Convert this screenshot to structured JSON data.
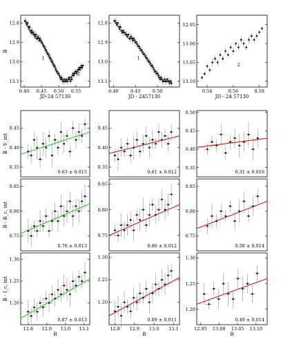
{
  "figure": {
    "colors": {
      "points": "#111111",
      "errorbars": "#777777",
      "fit_green": "#22cc22",
      "fit_red": "#dd1111",
      "frame": "#000000"
    }
  },
  "chart_data": [
    {
      "id": "lc1",
      "type": "scatter",
      "xlabel": "JD-24 57130",
      "ylabel": "B",
      "xlim": [
        0.39,
        0.59
      ],
      "ylim": [
        13.13,
        12.76
      ],
      "y_inverted": true,
      "xticks": [
        "0.40",
        "0.45",
        "0.50",
        "0.55"
      ],
      "xtick_values": [
        0.4,
        0.45,
        0.5,
        0.55
      ],
      "yticks": [
        "12.8",
        "12.9",
        "13.0",
        "13.1"
      ],
      "ytick_values": [
        12.8,
        12.9,
        13.0,
        13.1
      ],
      "annotations": [
        {
          "text": "1",
          "x": 0.455,
          "y": 12.99
        },
        {
          "text": "2",
          "x": 0.558,
          "y": 13.07
        }
      ],
      "points_x": [
        0.402,
        0.404,
        0.406,
        0.408,
        0.41,
        0.412,
        0.414,
        0.416,
        0.418,
        0.42,
        0.422,
        0.424,
        0.426,
        0.428,
        0.43,
        0.432,
        0.434,
        0.436,
        0.438,
        0.44,
        0.442,
        0.444,
        0.446,
        0.448,
        0.45,
        0.452,
        0.454,
        0.456,
        0.458,
        0.46,
        0.462,
        0.464,
        0.466,
        0.468,
        0.47,
        0.472,
        0.474,
        0.476,
        0.478,
        0.48,
        0.482,
        0.484,
        0.486,
        0.488,
        0.49,
        0.492,
        0.494,
        0.496,
        0.498,
        0.5,
        0.502,
        0.504,
        0.506,
        0.508,
        0.51,
        0.512,
        0.514,
        0.516,
        0.518,
        0.52,
        0.522,
        0.524,
        0.526,
        0.528,
        0.53,
        0.532,
        0.534,
        0.536,
        0.538,
        0.54,
        0.542,
        0.544,
        0.546,
        0.548,
        0.55,
        0.552,
        0.554,
        0.556,
        0.558,
        0.56,
        0.562,
        0.564,
        0.566,
        0.568,
        0.57
      ],
      "points_y": [
        12.79,
        12.79,
        12.8,
        12.81,
        12.8,
        12.82,
        12.83,
        12.82,
        12.84,
        12.85,
        12.84,
        12.85,
        12.85,
        12.86,
        12.86,
        12.87,
        12.86,
        12.88,
        12.88,
        12.87,
        12.88,
        12.89,
        12.88,
        12.89,
        12.9,
        12.9,
        12.91,
        12.92,
        12.92,
        12.93,
        12.94,
        12.94,
        12.95,
        12.96,
        12.96,
        12.97,
        12.98,
        12.98,
        12.99,
        13.0,
        13.0,
        13.01,
        13.02,
        13.02,
        13.03,
        13.04,
        13.05,
        13.05,
        13.06,
        13.06,
        13.07,
        13.08,
        13.09,
        13.08,
        13.09,
        13.1,
        13.1,
        13.09,
        13.1,
        13.1,
        13.09,
        13.1,
        13.1,
        13.09,
        13.08,
        13.09,
        13.1,
        13.08,
        13.09,
        13.07,
        13.06,
        13.07,
        13.06,
        13.05,
        13.05,
        13.06,
        13.05,
        13.04,
        13.04,
        13.03,
        13.04,
        13.03,
        13.02,
        13.03,
        13.02
      ]
    },
    {
      "id": "lc2",
      "type": "scatter",
      "xlabel": "JD - 2457130",
      "ylabel": "",
      "xlim": [
        0.39,
        0.55
      ],
      "ylim": [
        13.13,
        12.76
      ],
      "y_inverted": true,
      "xticks": [
        "0.40",
        "0.45",
        "0.50"
      ],
      "xtick_values": [
        0.4,
        0.45,
        0.5
      ],
      "yticks": [
        "12.8",
        "12.9",
        "13.0",
        "13.1"
      ],
      "ytick_values": [
        12.8,
        12.9,
        13.0,
        13.1
      ],
      "annotations": [
        {
          "text": "1",
          "x": 0.457,
          "y": 12.99
        }
      ],
      "points_x": [
        0.402,
        0.404,
        0.406,
        0.408,
        0.41,
        0.412,
        0.414,
        0.416,
        0.418,
        0.42,
        0.422,
        0.424,
        0.426,
        0.428,
        0.43,
        0.432,
        0.434,
        0.436,
        0.438,
        0.44,
        0.442,
        0.444,
        0.446,
        0.448,
        0.45,
        0.452,
        0.454,
        0.456,
        0.458,
        0.46,
        0.462,
        0.464,
        0.466,
        0.468,
        0.47,
        0.472,
        0.474,
        0.476,
        0.478,
        0.48,
        0.482,
        0.484,
        0.486,
        0.488,
        0.49,
        0.492,
        0.494,
        0.496,
        0.498,
        0.5,
        0.502,
        0.504,
        0.506,
        0.508,
        0.51,
        0.512,
        0.514,
        0.516,
        0.518,
        0.52,
        0.522,
        0.524,
        0.526,
        0.528,
        0.53,
        0.532
      ],
      "points_y": [
        12.79,
        12.79,
        12.8,
        12.81,
        12.8,
        12.82,
        12.83,
        12.82,
        12.84,
        12.85,
        12.84,
        12.85,
        12.85,
        12.86,
        12.86,
        12.87,
        12.86,
        12.88,
        12.88,
        12.87,
        12.88,
        12.89,
        12.88,
        12.89,
        12.9,
        12.9,
        12.91,
        12.92,
        12.92,
        12.93,
        12.94,
        12.94,
        12.95,
        12.96,
        12.96,
        12.97,
        12.98,
        12.98,
        12.99,
        13.0,
        13.0,
        13.01,
        13.02,
        13.02,
        13.03,
        13.04,
        13.05,
        13.05,
        13.06,
        13.06,
        13.07,
        13.08,
        13.09,
        13.08,
        13.09,
        13.1,
        13.1,
        13.09,
        13.1,
        13.1,
        13.09,
        13.1,
        13.1,
        13.11,
        13.1,
        13.11
      ]
    },
    {
      "id": "lc3",
      "type": "scatter",
      "xlabel": "JD - 24 57130",
      "ylabel": "",
      "xlim": [
        0.532,
        0.586
      ],
      "ylim": [
        13.115,
        12.925
      ],
      "y_inverted": true,
      "xticks": [
        "0.54",
        "0.56",
        "0.58"
      ],
      "xtick_values": [
        0.54,
        0.56,
        0.58
      ],
      "yticks": [
        "12.95",
        "13.00",
        "13.05",
        "13.10"
      ],
      "ytick_values": [
        12.95,
        13.0,
        13.05,
        13.1
      ],
      "annotations": [
        {
          "text": "2",
          "x": 0.564,
          "y": 13.06
        }
      ],
      "points_x": [
        0.536,
        0.538,
        0.54,
        0.542,
        0.544,
        0.546,
        0.548,
        0.55,
        0.552,
        0.554,
        0.556,
        0.558,
        0.56,
        0.562,
        0.564,
        0.566,
        0.568,
        0.57,
        0.572,
        0.574,
        0.576,
        0.578,
        0.58,
        0.582
      ],
      "points_y": [
        13.09,
        13.08,
        13.06,
        13.07,
        13.05,
        13.04,
        13.05,
        13.03,
        13.04,
        13.02,
        13.03,
        13.01,
        13.02,
        13.0,
        13.01,
        12.99,
        13.0,
        13.01,
        12.99,
        12.98,
        12.99,
        12.98,
        12.97,
        12.96
      ]
    },
    {
      "id": "c1",
      "type": "scatter",
      "ylabel": "B - V_int",
      "xlabel": "",
      "xlim": [
        12.76,
        13.13
      ],
      "ylim": [
        0.325,
        0.495
      ],
      "xticks": [],
      "xtick_values": [],
      "yticks": [
        "0.35",
        "0.40",
        "0.45"
      ],
      "ytick_values": [
        0.35,
        0.4,
        0.45
      ],
      "fit": {
        "color": "green",
        "x0": 12.76,
        "y0": 0.383,
        "x1": 13.13,
        "y1": 0.44
      },
      "label": "0.63 ± 0.015",
      "points_x": [
        12.8,
        12.816,
        12.832,
        12.848,
        12.864,
        12.88,
        12.896,
        12.912,
        12.928,
        12.944,
        12.96,
        12.976,
        12.992,
        13.008,
        13.024,
        13.04,
        13.056,
        13.072,
        13.088,
        13.104
      ],
      "points_y": [
        0.39,
        0.38,
        0.42,
        0.4,
        0.37,
        0.41,
        0.4,
        0.43,
        0.38,
        0.42,
        0.4,
        0.44,
        0.41,
        0.43,
        0.39,
        0.45,
        0.42,
        0.44,
        0.43,
        0.46
      ]
    },
    {
      "id": "c2",
      "type": "scatter",
      "ylabel": "",
      "xlabel": "",
      "xlim": [
        12.77,
        13.13
      ],
      "ylim": [
        0.325,
        0.495
      ],
      "xticks": [],
      "xtick_values": [],
      "yticks": [
        "0.35",
        "0.40",
        "0.45"
      ],
      "ytick_values": [
        0.35,
        0.4,
        0.45
      ],
      "fit": {
        "color": "red",
        "x0": 12.77,
        "y0": 0.385,
        "x1": 13.13,
        "y1": 0.43
      },
      "label": "0.61 ± 0.012",
      "points_x": [
        12.8,
        12.816,
        12.832,
        12.848,
        12.864,
        12.88,
        12.896,
        12.912,
        12.928,
        12.944,
        12.96,
        12.976,
        12.992,
        13.008,
        13.024,
        13.04,
        13.056,
        13.072,
        13.088
      ],
      "points_y": [
        0.38,
        0.37,
        0.4,
        0.39,
        0.41,
        0.38,
        0.4,
        0.42,
        0.39,
        0.41,
        0.43,
        0.4,
        0.42,
        0.41,
        0.44,
        0.42,
        0.43,
        0.41,
        0.44
      ]
    },
    {
      "id": "c3",
      "type": "scatter",
      "ylabel": "",
      "xlabel": "",
      "xlim": [
        12.93,
        13.13
      ],
      "ylim": [
        0.325,
        0.505
      ],
      "xticks": [],
      "xtick_values": [],
      "yticks": [
        "0.35",
        "0.40",
        "0.45",
        "0.50"
      ],
      "ytick_values": [
        0.35,
        0.4,
        0.45,
        0.5
      ],
      "fit": {
        "color": "red",
        "x0": 12.93,
        "y0": 0.405,
        "x1": 13.13,
        "y1": 0.43
      },
      "label": "0.31 ± 0.016",
      "points_x": [
        12.96,
        12.973,
        12.986,
        12.999,
        13.012,
        13.025,
        13.038,
        13.051,
        13.064,
        13.077,
        13.09,
        13.103
      ],
      "points_y": [
        0.4,
        0.42,
        0.41,
        0.44,
        0.39,
        0.42,
        0.43,
        0.41,
        0.42,
        0.44,
        0.4,
        0.43
      ]
    },
    {
      "id": "c4",
      "type": "scatter",
      "ylabel": "B - R_c, int",
      "xlabel": "",
      "xlim": [
        12.76,
        13.13
      ],
      "ylim": [
        0.72,
        0.865
      ],
      "xticks": [],
      "xtick_values": [],
      "yticks": [
        "0.75",
        "0.80",
        "0.85"
      ],
      "ytick_values": [
        0.75,
        0.8,
        0.85
      ],
      "fit": {
        "color": "green",
        "x0": 12.76,
        "y0": 0.755,
        "x1": 13.13,
        "y1": 0.815
      },
      "label": "0.76 ± 0.013",
      "points_x": [
        12.8,
        12.816,
        12.832,
        12.848,
        12.864,
        12.88,
        12.896,
        12.912,
        12.928,
        12.944,
        12.96,
        12.976,
        12.992,
        13.008,
        13.024,
        13.04,
        13.056,
        13.072,
        13.088,
        13.104
      ],
      "points_y": [
        0.76,
        0.75,
        0.77,
        0.76,
        0.78,
        0.77,
        0.79,
        0.76,
        0.78,
        0.8,
        0.78,
        0.81,
        0.79,
        0.8,
        0.82,
        0.79,
        0.81,
        0.8,
        0.82,
        0.83
      ]
    },
    {
      "id": "c5",
      "type": "scatter",
      "ylabel": "",
      "xlabel": "",
      "xlim": [
        12.77,
        13.13
      ],
      "ylim": [
        0.72,
        0.86
      ],
      "xticks": [],
      "xtick_values": [],
      "yticks": [
        "0.75",
        "0.80",
        "0.85"
      ],
      "ytick_values": [
        0.75,
        0.8,
        0.85
      ],
      "fit": {
        "color": "red",
        "x0": 12.77,
        "y0": 0.75,
        "x1": 13.13,
        "y1": 0.81
      },
      "label": "0.80 ± 0.012",
      "points_x": [
        12.8,
        12.816,
        12.832,
        12.848,
        12.864,
        12.88,
        12.896,
        12.912,
        12.928,
        12.944,
        12.96,
        12.976,
        12.992,
        13.008,
        13.024,
        13.04,
        13.056,
        13.072,
        13.088
      ],
      "points_y": [
        0.76,
        0.75,
        0.77,
        0.76,
        0.77,
        0.78,
        0.76,
        0.79,
        0.78,
        0.8,
        0.77,
        0.79,
        0.81,
        0.79,
        0.8,
        0.82,
        0.8,
        0.81,
        0.83
      ]
    },
    {
      "id": "c6",
      "type": "scatter",
      "ylabel": "",
      "xlabel": "",
      "xlim": [
        12.93,
        13.13
      ],
      "ylim": [
        0.72,
        0.865
      ],
      "xticks": [],
      "xtick_values": [],
      "yticks": [
        "0.75",
        "0.80",
        "0.85"
      ],
      "ytick_values": [
        0.75,
        0.8,
        0.85
      ],
      "fit": {
        "color": "red",
        "x0": 12.93,
        "y0": 0.765,
        "x1": 13.13,
        "y1": 0.82
      },
      "label": "0.58 ± 0.014",
      "points_x": [
        12.96,
        12.973,
        12.986,
        12.999,
        13.012,
        13.025,
        13.038,
        13.051,
        13.064,
        13.077,
        13.09,
        13.103
      ],
      "points_y": [
        0.77,
        0.79,
        0.78,
        0.8,
        0.79,
        0.81,
        0.78,
        0.8,
        0.82,
        0.79,
        0.81,
        0.83
      ]
    },
    {
      "id": "c7",
      "type": "scatter",
      "ylabel": "B - I_c, int",
      "xlabel": "B",
      "xlim": [
        12.76,
        13.13
      ],
      "ylim": [
        1.15,
        1.315
      ],
      "xticks": [
        "12.8",
        "12.9",
        "13.0",
        "13.1"
      ],
      "xtick_values": [
        12.8,
        12.9,
        13.0,
        13.1
      ],
      "yticks": [
        "1.20",
        "1.25",
        "1.30"
      ],
      "ytick_values": [
        1.2,
        1.25,
        1.3
      ],
      "fit": {
        "color": "green",
        "x0": 12.76,
        "y0": 1.165,
        "x1": 13.13,
        "y1": 1.255
      },
      "label": "0.87 ± 0.013",
      "points_x": [
        12.8,
        12.816,
        12.832,
        12.848,
        12.864,
        12.88,
        12.896,
        12.912,
        12.928,
        12.944,
        12.96,
        12.976,
        12.992,
        13.008,
        13.024,
        13.04,
        13.056,
        13.072,
        13.088,
        13.104
      ],
      "points_y": [
        1.18,
        1.17,
        1.19,
        1.18,
        1.2,
        1.19,
        1.21,
        1.2,
        1.22,
        1.21,
        1.23,
        1.22,
        1.24,
        1.23,
        1.22,
        1.25,
        1.24,
        1.26,
        1.25,
        1.27
      ]
    },
    {
      "id": "c8",
      "type": "scatter",
      "ylabel": "",
      "xlabel": "B",
      "xlim": [
        12.77,
        13.13
      ],
      "ylim": [
        1.15,
        1.31
      ],
      "xticks": [
        "12.8",
        "12.9",
        "13.0",
        "13.1"
      ],
      "xtick_values": [
        12.8,
        12.9,
        13.0,
        13.1
      ],
      "yticks": [
        "1.20",
        "1.25",
        "1.30"
      ],
      "ytick_values": [
        1.2,
        1.25,
        1.3
      ],
      "fit": {
        "color": "red",
        "x0": 12.77,
        "y0": 1.17,
        "x1": 13.13,
        "y1": 1.255
      },
      "label": "0.89 ± 0.011",
      "points_x": [
        12.8,
        12.816,
        12.832,
        12.848,
        12.864,
        12.88,
        12.896,
        12.912,
        12.928,
        12.944,
        12.96,
        12.976,
        12.992,
        13.008,
        13.024,
        13.04,
        13.056,
        13.072,
        13.088
      ],
      "points_y": [
        1.18,
        1.19,
        1.17,
        1.2,
        1.19,
        1.18,
        1.21,
        1.2,
        1.22,
        1.21,
        1.23,
        1.2,
        1.22,
        1.24,
        1.23,
        1.25,
        1.24,
        1.26,
        1.27
      ]
    },
    {
      "id": "c9",
      "type": "scatter",
      "ylabel": "",
      "xlabel": "B",
      "xlim": [
        12.94,
        13.13
      ],
      "ylim": [
        1.17,
        1.31
      ],
      "xticks": [
        "12.95",
        "13.00",
        "13.05",
        "13.10"
      ],
      "xtick_values": [
        12.95,
        13.0,
        13.05,
        13.1
      ],
      "yticks": [
        "1.20",
        "1.25",
        "1.30"
      ],
      "ytick_values": [
        1.2,
        1.25,
        1.3
      ],
      "fit": {
        "color": "red",
        "x0": 12.94,
        "y0": 1.21,
        "x1": 13.13,
        "y1": 1.26
      },
      "label": "0.49 ± 0.014",
      "points_x": [
        12.96,
        12.973,
        12.986,
        12.999,
        13.012,
        13.025,
        13.038,
        13.051,
        13.064,
        13.077,
        13.09,
        13.103
      ],
      "points_y": [
        1.23,
        1.21,
        1.24,
        1.22,
        1.25,
        1.23,
        1.22,
        1.26,
        1.24,
        1.25,
        1.23,
        1.27
      ]
    }
  ]
}
